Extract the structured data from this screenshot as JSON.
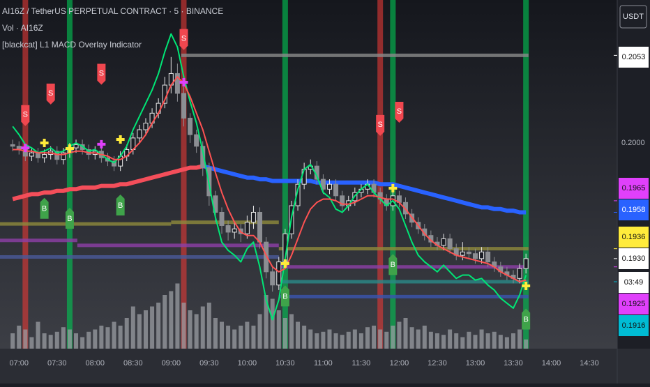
{
  "chart_data": {
    "type": "candlestick",
    "title": "AI16Z / TetherUS PERPETUAL CONTRACT · 5 · BINANCE",
    "subtitle": "Vol · AI16Z",
    "indicator_name": "[blackcat] L1 MACD Overlay Indicator",
    "currency": "USDT",
    "countdown": "03:49",
    "xlim": [
      405,
      892
    ],
    "ylim": [
      0.18755,
      0.20865
    ],
    "vol_ylim": [
      0,
      100
    ],
    "xticks": [
      {
        "value": 420,
        "label": "07:00"
      },
      {
        "value": 450,
        "label": "07:30"
      },
      {
        "value": 480,
        "label": "08:00"
      },
      {
        "value": 510,
        "label": "08:30"
      },
      {
        "value": 540,
        "label": "09:00"
      },
      {
        "value": 570,
        "label": "09:30"
      },
      {
        "value": 600,
        "label": "10:00"
      },
      {
        "value": 630,
        "label": "10:30"
      },
      {
        "value": 660,
        "label": "11:00"
      },
      {
        "value": 690,
        "label": "11:30"
      },
      {
        "value": 720,
        "label": "12:00"
      },
      {
        "value": 750,
        "label": "12:30"
      },
      {
        "value": 780,
        "label": "13:00"
      },
      {
        "value": 810,
        "label": "13:30"
      },
      {
        "value": 840,
        "label": "14:00"
      },
      {
        "value": 870,
        "label": "14:30"
      }
    ],
    "yticks": [
      {
        "value": 0.2,
        "label": "0.2000"
      }
    ],
    "price_labels": [
      {
        "value": 0.2053,
        "label": "0.2053",
        "color": "#ffffff"
      },
      {
        "value": 0.1965,
        "label": "0.1965",
        "color": "#e040fb"
      },
      {
        "value": 0.1958,
        "label": "0.1958",
        "color": "#2962ff"
      },
      {
        "value": 0.1936,
        "label": "0.1936",
        "color": "#ffeb3b"
      },
      {
        "value": 0.193,
        "label": "0.1930",
        "color": "#ffffff"
      },
      {
        "value": 0.1925,
        "label": "0.1925",
        "color": "#e040fb"
      },
      {
        "value": 0.1916,
        "label": "0.1916",
        "color": "#00bcd4"
      }
    ],
    "x": [
      415,
      420,
      425,
      430,
      435,
      440,
      445,
      450,
      455,
      460,
      465,
      470,
      475,
      480,
      485,
      490,
      495,
      500,
      505,
      510,
      515,
      520,
      525,
      530,
      535,
      540,
      545,
      550,
      555,
      560,
      565,
      570,
      575,
      580,
      585,
      590,
      595,
      600,
      605,
      610,
      615,
      620,
      625,
      630,
      635,
      640,
      645,
      650,
      655,
      660,
      665,
      670,
      675,
      680,
      685,
      690,
      695,
      700,
      705,
      710,
      715,
      720,
      725,
      730,
      735,
      740,
      745,
      750,
      755,
      760,
      765,
      770,
      775,
      780,
      785,
      790,
      795,
      800,
      805,
      810,
      815,
      820
    ],
    "open": [
      0.1999,
      0.1998,
      0.1996,
      0.1992,
      0.1994,
      0.1991,
      0.1993,
      0.1995,
      0.199,
      0.1994,
      0.1997,
      0.1999,
      0.1996,
      0.1993,
      0.1995,
      0.1991,
      0.1989,
      0.1986,
      0.1992,
      0.1996,
      0.2003,
      0.2008,
      0.2012,
      0.2018,
      0.2024,
      0.2035,
      0.2042,
      0.203,
      0.2015,
      0.2005,
      0.1998,
      0.1985,
      0.1968,
      0.1958,
      0.195,
      0.1946,
      0.1948,
      0.1945,
      0.1952,
      0.1958,
      0.194,
      0.1922,
      0.1914,
      0.1928,
      0.1945,
      0.1962,
      0.1975,
      0.1984,
      0.1986,
      0.1978,
      0.1972,
      0.1975,
      0.1968,
      0.1962,
      0.1965,
      0.197,
      0.1972,
      0.1975,
      0.197,
      0.1966,
      0.1962,
      0.1968,
      0.1964,
      0.1957,
      0.1952,
      0.1948,
      0.1944,
      0.194,
      0.1938,
      0.1942,
      0.1936,
      0.1932,
      0.1934,
      0.1933,
      0.193,
      0.1934,
      0.1928,
      0.1925,
      0.1922,
      0.192,
      0.1918,
      0.1924
    ],
    "high": [
      0.2002,
      0.2001,
      0.1999,
      0.1997,
      0.1997,
      0.1996,
      0.1998,
      0.1998,
      0.1997,
      0.2,
      0.2002,
      0.2002,
      0.1999,
      0.1998,
      0.1998,
      0.1994,
      0.1992,
      0.1995,
      0.1999,
      0.2006,
      0.2011,
      0.2015,
      0.2021,
      0.2027,
      0.204,
      0.2052,
      0.2048,
      0.2034,
      0.2018,
      0.2008,
      0.2001,
      0.1988,
      0.1971,
      0.1961,
      0.1953,
      0.1952,
      0.1951,
      0.1956,
      0.1962,
      0.1961,
      0.1943,
      0.1925,
      0.1931,
      0.1948,
      0.1965,
      0.1978,
      0.1988,
      0.199,
      0.1989,
      0.1981,
      0.1978,
      0.1978,
      0.1971,
      0.1968,
      0.1973,
      0.1975,
      0.1978,
      0.1978,
      0.1973,
      0.1969,
      0.1971,
      0.1971,
      0.1967,
      0.196,
      0.1955,
      0.1951,
      0.1947,
      0.1943,
      0.1945,
      0.1945,
      0.1939,
      0.194,
      0.1937,
      0.1936,
      0.1937,
      0.1937,
      0.1931,
      0.1928,
      0.1925,
      0.1923,
      0.1927,
      0.1933
    ],
    "low": [
      0.1995,
      0.1993,
      0.1989,
      0.1989,
      0.1988,
      0.1988,
      0.199,
      0.1987,
      0.1987,
      0.1991,
      0.1994,
      0.1993,
      0.199,
      0.199,
      0.1988,
      0.1986,
      0.1983,
      0.1983,
      0.1989,
      0.1993,
      0.2,
      0.2005,
      0.2009,
      0.2015,
      0.2021,
      0.203,
      0.2025,
      0.201,
      0.2,
      0.1994,
      0.198,
      0.1962,
      0.1952,
      0.1945,
      0.1941,
      0.1942,
      0.194,
      0.1942,
      0.1948,
      0.1936,
      0.1918,
      0.191,
      0.1911,
      0.1925,
      0.1942,
      0.1959,
      0.1972,
      0.1981,
      0.1975,
      0.1969,
      0.1969,
      0.1965,
      0.1959,
      0.1959,
      0.1962,
      0.1967,
      0.1969,
      0.1967,
      0.1963,
      0.1959,
      0.1959,
      0.1961,
      0.1954,
      0.1949,
      0.1945,
      0.1941,
      0.1937,
      0.1935,
      0.1935,
      0.1933,
      0.1929,
      0.1929,
      0.193,
      0.1927,
      0.1927,
      0.1925,
      0.1922,
      0.1919,
      0.1917,
      0.1915,
      0.1915,
      0.1921
    ],
    "close": [
      0.1998,
      0.1996,
      0.1992,
      0.1994,
      0.1991,
      0.1993,
      0.1995,
      0.199,
      0.1994,
      0.1997,
      0.1999,
      0.1996,
      0.1993,
      0.1995,
      0.1991,
      0.1989,
      0.1986,
      0.1992,
      0.1996,
      0.2003,
      0.2008,
      0.2012,
      0.2018,
      0.2024,
      0.2035,
      0.2042,
      0.203,
      0.2015,
      0.2005,
      0.1998,
      0.1985,
      0.1968,
      0.1958,
      0.195,
      0.1946,
      0.1948,
      0.1945,
      0.1952,
      0.1958,
      0.194,
      0.1922,
      0.1914,
      0.1928,
      0.1945,
      0.1962,
      0.1975,
      0.1984,
      0.1986,
      0.1978,
      0.1972,
      0.1975,
      0.1968,
      0.1962,
      0.1965,
      0.197,
      0.1972,
      0.1975,
      0.197,
      0.1966,
      0.1962,
      0.1968,
      0.1964,
      0.1957,
      0.1952,
      0.1948,
      0.1944,
      0.194,
      0.1938,
      0.1942,
      0.1936,
      0.1932,
      0.1934,
      0.1933,
      0.193,
      0.1934,
      0.1928,
      0.1925,
      0.1922,
      0.192,
      0.1918,
      0.1924,
      0.193
    ],
    "volume": [
      20,
      30,
      25,
      15,
      35,
      20,
      18,
      22,
      28,
      25,
      20,
      15,
      22,
      25,
      30,
      28,
      35,
      30,
      40,
      55,
      45,
      50,
      55,
      60,
      70,
      75,
      85,
      60,
      50,
      45,
      55,
      60,
      40,
      35,
      30,
      25,
      30,
      35,
      30,
      45,
      70,
      65,
      50,
      40,
      45,
      35,
      30,
      25,
      20,
      22,
      25,
      20,
      18,
      22,
      25,
      20,
      28,
      30,
      25,
      22,
      30,
      35,
      40,
      28,
      25,
      30,
      22,
      20,
      18,
      25,
      20,
      15,
      22,
      18,
      25,
      20,
      22,
      18,
      15,
      20,
      25,
      12
    ],
    "series": [
      {
        "color": "#00e676",
        "width": 2,
        "values": [
          0.201,
          0.2005,
          0.1999,
          0.1997,
          0.1994,
          0.1995,
          0.1997,
          0.1994,
          0.1995,
          0.1998,
          0.2,
          0.1998,
          0.1995,
          0.1996,
          0.1993,
          0.199,
          0.1988,
          0.1992,
          0.1998,
          0.2008,
          0.2016,
          0.2024,
          0.2032,
          0.2042,
          0.2055,
          0.2066,
          0.2058,
          0.204,
          0.2025,
          0.2012,
          0.1995,
          0.1975,
          0.1955,
          0.194,
          0.1935,
          0.1932,
          0.1928,
          0.1936,
          0.194,
          0.1925,
          0.1905,
          0.1893,
          0.1905,
          0.193,
          0.1955,
          0.1972,
          0.1984,
          0.1987,
          0.198,
          0.197,
          0.1967,
          0.196,
          0.1958,
          0.1962,
          0.1968,
          0.1972,
          0.1975,
          0.197,
          0.1966,
          0.1962,
          0.1965,
          0.196,
          0.195,
          0.194,
          0.1932,
          0.1928,
          0.1925,
          0.1922,
          0.1926,
          0.1922,
          0.1918,
          0.192,
          0.192,
          0.1917,
          0.1918,
          0.1914,
          0.1911,
          0.1906,
          0.1903,
          0.19,
          0.1908,
          0.192
        ]
      },
      {
        "color": "#ff5252",
        "width": 2,
        "values": [
          0.1996,
          0.1996,
          0.1995,
          0.1995,
          0.1994,
          0.1994,
          0.1994,
          0.1993,
          0.1993,
          0.1994,
          0.1995,
          0.1995,
          0.1994,
          0.1994,
          0.1993,
          0.1992,
          0.199,
          0.199,
          0.1992,
          0.1996,
          0.2,
          0.2005,
          0.2012,
          0.2018,
          0.2026,
          0.2035,
          0.204,
          0.2036,
          0.2028,
          0.2018,
          0.2008,
          0.1995,
          0.1982,
          0.197,
          0.196,
          0.1952,
          0.1946,
          0.1944,
          0.1944,
          0.194,
          0.1932,
          0.1925,
          0.1922,
          0.1924,
          0.1932,
          0.1942,
          0.1952,
          0.196,
          0.1964,
          0.1966,
          0.1966,
          0.1965,
          0.1963,
          0.1963,
          0.1964,
          0.1966,
          0.1968,
          0.1968,
          0.1967,
          0.1966,
          0.1966,
          0.1964,
          0.196,
          0.1955,
          0.195,
          0.1945,
          0.1941,
          0.1938,
          0.1936,
          0.1934,
          0.1932,
          0.1931,
          0.193,
          0.1929,
          0.1928,
          0.1927,
          0.1925,
          0.1922,
          0.192,
          0.1918,
          0.1916,
          0.1917
        ]
      },
      {
        "color": "#f44e5a",
        "width": 6,
        "values": [
          0.1966,
          0.1967,
          0.1968,
          0.1969,
          0.1969,
          0.197,
          0.197,
          0.1971,
          0.1971,
          0.1972,
          0.1972,
          0.1973,
          0.1973,
          0.1973,
          0.1974,
          0.1974,
          0.1974,
          0.1975,
          0.1975,
          0.1976,
          0.1977,
          0.1978,
          0.1979,
          0.198,
          0.1981,
          0.1982,
          0.1983,
          0.1984,
          0.1985,
          0.1985,
          0.1986,
          null,
          null,
          null,
          null,
          null,
          null,
          null,
          null,
          null,
          null,
          null,
          null,
          null,
          null,
          null,
          null,
          null,
          null,
          null,
          null,
          null,
          null,
          null,
          null,
          null,
          null,
          null,
          null,
          null,
          null,
          null,
          null,
          null,
          null,
          null,
          null,
          null,
          null,
          null,
          null,
          null,
          null,
          null,
          null,
          null,
          null,
          null,
          null,
          null,
          null,
          null
        ]
      },
      {
        "color": "#2962ff",
        "width": 6,
        "values": [
          null,
          null,
          null,
          null,
          null,
          null,
          null,
          null,
          null,
          null,
          null,
          null,
          null,
          null,
          null,
          null,
          null,
          null,
          null,
          null,
          null,
          null,
          null,
          null,
          null,
          null,
          null,
          null,
          null,
          null,
          0.1986,
          0.1985,
          0.1984,
          0.1983,
          0.1982,
          0.1981,
          0.198,
          0.1979,
          0.1979,
          0.1978,
          0.1978,
          0.1977,
          0.1977,
          0.1977,
          0.1977,
          0.1977,
          0.1977,
          0.1977,
          0.1976,
          0.1976,
          0.1976,
          0.1976,
          0.1976,
          0.1976,
          0.1976,
          0.1976,
          0.1976,
          0.1976,
          0.1975,
          0.1975,
          0.1975,
          0.1974,
          0.1973,
          0.1972,
          0.1971,
          0.197,
          0.1969,
          0.1968,
          0.1967,
          0.1966,
          0.1965,
          0.1964,
          0.1963,
          0.1962,
          0.1961,
          0.1961,
          0.196,
          0.196,
          0.1959,
          0.1959,
          0.1958,
          0.1958
        ]
      }
    ],
    "levels": [
      {
        "x": [
          405,
          540
        ],
        "price": 0.1951,
        "color": "#8f8a3c"
      },
      {
        "x": [
          540,
          625
        ],
        "price": 0.1952,
        "color": "#8f8a3c"
      },
      {
        "x": [
          625,
          822
        ],
        "price": 0.1936,
        "color": "#8f8a3c"
      },
      {
        "x": [
          405,
          466
        ],
        "price": 0.1941,
        "color": "#8e3fa8"
      },
      {
        "x": [
          466,
          625
        ],
        "price": 0.1938,
        "color": "#8e3fa8"
      },
      {
        "x": [
          625,
          822
        ],
        "price": 0.1925,
        "color": "#8e3fa8"
      },
      {
        "x": [
          405,
          625
        ],
        "price": 0.1931,
        "color": "#4a5a9a"
      },
      {
        "x": [
          625,
          822
        ],
        "price": 0.1907,
        "color": "#3a55b0"
      },
      {
        "x": [
          625,
          822
        ],
        "price": 0.1916,
        "color": "#2a8a88"
      },
      {
        "x": [
          548,
          822
        ],
        "price": 0.2053,
        "color": "#8a8a8a"
      }
    ],
    "signal_bars": [
      {
        "x": 425,
        "color": "#e53935"
      },
      {
        "x": 550,
        "color": "#e53935"
      },
      {
        "x": 705,
        "color": "#e53935"
      },
      {
        "x": 460,
        "color": "#00c853"
      },
      {
        "x": 630,
        "color": "#00c853"
      },
      {
        "x": 715,
        "color": "#00c853"
      },
      {
        "x": 820,
        "color": "#00c853"
      }
    ],
    "signals": [
      {
        "label": "S",
        "x": 425,
        "price": 0.2017
      },
      {
        "label": "S",
        "x": 445,
        "price": 0.203
      },
      {
        "label": "S",
        "x": 485,
        "price": 0.2042
      },
      {
        "label": "S",
        "x": 550,
        "price": 0.2063
      },
      {
        "label": "S",
        "x": 705,
        "price": 0.2011
      },
      {
        "label": "S",
        "x": 720,
        "price": 0.2019
      },
      {
        "label": "B",
        "x": 440,
        "price": 0.196
      },
      {
        "label": "B",
        "x": 460,
        "price": 0.1954
      },
      {
        "label": "B",
        "x": 500,
        "price": 0.1962
      },
      {
        "label": "B",
        "x": 630,
        "price": 0.1907
      },
      {
        "label": "B",
        "x": 715,
        "price": 0.1926
      },
      {
        "label": "B",
        "x": 820,
        "price": 0.1893
      }
    ],
    "crosses": {
      "x": [
        425,
        440,
        460,
        485,
        500,
        550,
        630,
        715,
        820
      ],
      "y": [
        0.1997,
        0.2,
        0.19966,
        0.19992,
        0.20021,
        0.20367,
        0.1927,
        0.19726,
        0.19135
      ],
      "colors": [
        "#e040fb",
        "#ffeb3b",
        "#ffeb3b",
        "#e040fb",
        "#ffeb3b",
        "#e040fb",
        "#ffeb3b",
        "#ffeb3b",
        "#ffeb3b"
      ]
    }
  }
}
